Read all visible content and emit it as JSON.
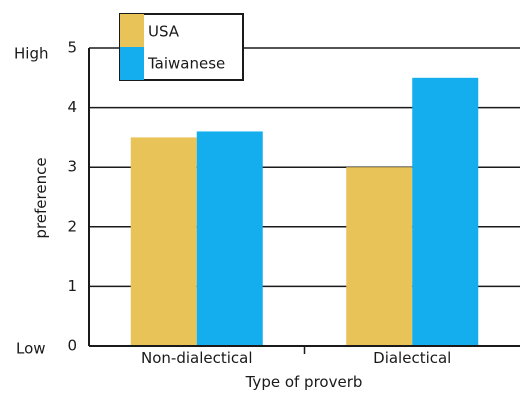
{
  "chart_data": {
    "type": "bar",
    "xlabel": "Type of proverb",
    "ylabel": "preference",
    "ylim": [
      0,
      5
    ],
    "yticks": [
      0,
      1,
      2,
      3,
      4,
      5
    ],
    "y_low_label": "Low",
    "y_high_label": "High",
    "categories": [
      "Non-dialectical",
      "Dialectical"
    ],
    "series": [
      {
        "name": "USA",
        "color": "#E8C358",
        "values": [
          3.5,
          3.0
        ]
      },
      {
        "name": "Taiwanese",
        "color": "#14AEEF",
        "values": [
          3.6,
          4.5
        ]
      }
    ],
    "grid": true,
    "legend_position": "top-left"
  }
}
